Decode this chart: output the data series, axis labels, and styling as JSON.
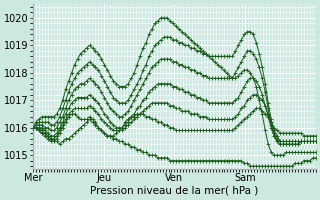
{
  "title": "",
  "xlabel": "Pression niveau de la mer( hPa )",
  "bg_color": "#cce8e0",
  "grid_color": "#ffffff",
  "line_color": "#1a5c1a",
  "marker": "+",
  "xlim": [
    0,
    96
  ],
  "ylim": [
    1014.5,
    1020.5
  ],
  "yticks": [
    1015,
    1016,
    1017,
    1018,
    1019,
    1020
  ],
  "xtick_labels": [
    "Mer",
    "Jeu",
    "Ven",
    "Sam"
  ],
  "xtick_positions": [
    0,
    24,
    48,
    72
  ],
  "vline_positions": [
    0,
    24,
    48,
    72
  ],
  "series": [
    [
      1016.0,
      1016.0,
      1015.9,
      1015.8,
      1015.8,
      1015.7,
      1015.6,
      1015.5,
      1015.5,
      1015.4,
      1015.5,
      1015.6,
      1015.6,
      1015.7,
      1015.8,
      1015.9,
      1016.0,
      1016.1,
      1016.2,
      1016.3,
      1016.2,
      1016.1,
      1016.0,
      1015.9,
      1015.8,
      1015.7,
      1015.7,
      1015.6,
      1015.6,
      1015.5,
      1015.5,
      1015.4,
      1015.4,
      1015.3,
      1015.3,
      1015.2,
      1015.2,
      1015.1,
      1015.1,
      1015.0,
      1015.0,
      1015.0,
      1014.9,
      1014.9,
      1014.9,
      1014.9,
      1014.8,
      1014.8,
      1014.8,
      1014.8,
      1014.8,
      1014.8,
      1014.8,
      1014.8,
      1014.8,
      1014.8,
      1014.8,
      1014.8,
      1014.8,
      1014.8,
      1014.8,
      1014.8,
      1014.8,
      1014.8,
      1014.8,
      1014.8,
      1014.8,
      1014.8,
      1014.8,
      1014.8,
      1014.8,
      1014.7,
      1014.7,
      1014.6,
      1014.6,
      1014.6,
      1014.6,
      1014.6,
      1014.6,
      1014.6,
      1014.6,
      1014.6,
      1014.6,
      1014.6,
      1014.6,
      1014.6,
      1014.6,
      1014.6,
      1014.7,
      1014.7,
      1014.7,
      1014.8,
      1014.8,
      1014.8,
      1014.9,
      1014.9
    ],
    [
      1016.0,
      1016.0,
      1015.9,
      1015.8,
      1015.7,
      1015.6,
      1015.5,
      1015.5,
      1015.6,
      1015.8,
      1016.0,
      1016.2,
      1016.4,
      1016.5,
      1016.5,
      1016.4,
      1016.3,
      1016.3,
      1016.3,
      1016.4,
      1016.3,
      1016.2,
      1016.0,
      1015.9,
      1015.8,
      1015.7,
      1015.7,
      1015.7,
      1015.8,
      1015.9,
      1016.0,
      1016.2,
      1016.3,
      1016.4,
      1016.4,
      1016.5,
      1016.5,
      1016.5,
      1016.4,
      1016.4,
      1016.3,
      1016.3,
      1016.2,
      1016.2,
      1016.1,
      1016.1,
      1016.0,
      1016.0,
      1015.9,
      1015.9,
      1015.9,
      1015.9,
      1015.9,
      1015.9,
      1015.9,
      1015.9,
      1015.9,
      1015.9,
      1015.9,
      1015.9,
      1015.9,
      1015.9,
      1015.9,
      1015.9,
      1015.9,
      1015.9,
      1015.9,
      1015.9,
      1016.0,
      1016.1,
      1016.2,
      1016.3,
      1016.4,
      1016.5,
      1016.6,
      1016.7,
      1016.7,
      1016.6,
      1016.5,
      1016.4,
      1016.2,
      1016.0,
      1015.9,
      1015.8,
      1015.8,
      1015.8,
      1015.8,
      1015.8,
      1015.8,
      1015.8,
      1015.8,
      1015.7,
      1015.7,
      1015.7,
      1015.7,
      1015.7
    ],
    [
      1016.0,
      1016.0,
      1016.0,
      1015.9,
      1015.8,
      1015.7,
      1015.6,
      1015.6,
      1015.7,
      1015.9,
      1016.1,
      1016.3,
      1016.5,
      1016.6,
      1016.7,
      1016.7,
      1016.7,
      1016.7,
      1016.7,
      1016.8,
      1016.7,
      1016.6,
      1016.5,
      1016.3,
      1016.2,
      1016.1,
      1016.0,
      1015.9,
      1015.9,
      1015.9,
      1015.9,
      1016.0,
      1016.1,
      1016.2,
      1016.3,
      1016.4,
      1016.5,
      1016.6,
      1016.7,
      1016.8,
      1016.9,
      1016.9,
      1016.9,
      1016.9,
      1016.9,
      1016.9,
      1016.8,
      1016.8,
      1016.7,
      1016.7,
      1016.6,
      1016.6,
      1016.6,
      1016.5,
      1016.5,
      1016.5,
      1016.4,
      1016.4,
      1016.4,
      1016.3,
      1016.3,
      1016.3,
      1016.3,
      1016.3,
      1016.3,
      1016.3,
      1016.3,
      1016.3,
      1016.4,
      1016.5,
      1016.7,
      1016.8,
      1017.0,
      1017.1,
      1017.2,
      1017.2,
      1017.1,
      1017.0,
      1016.8,
      1016.5,
      1016.2,
      1015.9,
      1015.7,
      1015.5,
      1015.5,
      1015.5,
      1015.5,
      1015.5,
      1015.5,
      1015.5,
      1015.5,
      1015.5,
      1015.5,
      1015.5,
      1015.5,
      1015.5
    ],
    [
      1016.0,
      1016.0,
      1016.0,
      1016.0,
      1015.9,
      1015.8,
      1015.7,
      1015.7,
      1015.8,
      1016.0,
      1016.2,
      1016.5,
      1016.7,
      1016.9,
      1017.0,
      1017.1,
      1017.1,
      1017.1,
      1017.1,
      1017.2,
      1017.1,
      1017.0,
      1016.9,
      1016.7,
      1016.5,
      1016.4,
      1016.2,
      1016.1,
      1016.0,
      1016.0,
      1016.0,
      1016.1,
      1016.2,
      1016.4,
      1016.5,
      1016.7,
      1016.8,
      1017.0,
      1017.1,
      1017.3,
      1017.4,
      1017.5,
      1017.6,
      1017.6,
      1017.6,
      1017.6,
      1017.6,
      1017.5,
      1017.5,
      1017.4,
      1017.4,
      1017.3,
      1017.3,
      1017.2,
      1017.2,
      1017.1,
      1017.1,
      1017.0,
      1017.0,
      1016.9,
      1016.9,
      1016.9,
      1016.9,
      1016.9,
      1016.9,
      1016.9,
      1016.9,
      1016.9,
      1017.0,
      1017.1,
      1017.3,
      1017.5,
      1017.7,
      1017.8,
      1017.8,
      1017.7,
      1017.5,
      1017.2,
      1016.8,
      1016.4,
      1016.0,
      1015.7,
      1015.5,
      1015.4,
      1015.4,
      1015.4,
      1015.4,
      1015.4,
      1015.4,
      1015.4,
      1015.5,
      1015.5,
      1015.5,
      1015.5,
      1015.5,
      1015.5
    ],
    [
      1016.0,
      1016.1,
      1016.1,
      1016.1,
      1016.0,
      1016.0,
      1015.9,
      1015.9,
      1016.0,
      1016.2,
      1016.4,
      1016.7,
      1017.0,
      1017.2,
      1017.4,
      1017.5,
      1017.6,
      1017.6,
      1017.7,
      1017.8,
      1017.7,
      1017.6,
      1017.5,
      1017.3,
      1017.1,
      1016.9,
      1016.7,
      1016.6,
      1016.5,
      1016.4,
      1016.4,
      1016.5,
      1016.6,
      1016.8,
      1017.0,
      1017.2,
      1017.4,
      1017.6,
      1017.8,
      1018.0,
      1018.2,
      1018.3,
      1018.4,
      1018.5,
      1018.5,
      1018.5,
      1018.5,
      1018.4,
      1018.4,
      1018.3,
      1018.3,
      1018.2,
      1018.2,
      1018.1,
      1018.1,
      1018.0,
      1018.0,
      1017.9,
      1017.9,
      1017.8,
      1017.8,
      1017.8,
      1017.8,
      1017.8,
      1017.8,
      1017.8,
      1017.8,
      1017.8,
      1018.0,
      1018.2,
      1018.4,
      1018.6,
      1018.8,
      1018.8,
      1018.7,
      1018.5,
      1018.2,
      1017.8,
      1017.3,
      1016.7,
      1016.1,
      1015.7,
      1015.5,
      1015.4,
      1015.4,
      1015.4,
      1015.4,
      1015.4,
      1015.4,
      1015.4,
      1015.5,
      1015.5,
      1015.5,
      1015.5,
      1015.5,
      1015.5
    ],
    [
      1016.0,
      1016.1,
      1016.2,
      1016.2,
      1016.2,
      1016.2,
      1016.1,
      1016.1,
      1016.2,
      1016.4,
      1016.7,
      1017.0,
      1017.3,
      1017.6,
      1017.8,
      1018.0,
      1018.1,
      1018.2,
      1018.3,
      1018.4,
      1018.3,
      1018.2,
      1018.1,
      1017.9,
      1017.7,
      1017.5,
      1017.3,
      1017.1,
      1017.0,
      1016.9,
      1016.9,
      1016.9,
      1017.0,
      1017.2,
      1017.4,
      1017.6,
      1017.8,
      1018.1,
      1018.3,
      1018.6,
      1018.8,
      1019.0,
      1019.1,
      1019.2,
      1019.3,
      1019.3,
      1019.3,
      1019.2,
      1019.2,
      1019.1,
      1019.1,
      1019.0,
      1019.0,
      1018.9,
      1018.9,
      1018.8,
      1018.8,
      1018.7,
      1018.7,
      1018.6,
      1018.6,
      1018.6,
      1018.6,
      1018.6,
      1018.6,
      1018.6,
      1018.6,
      1018.6,
      1018.8,
      1019.0,
      1019.2,
      1019.4,
      1019.5,
      1019.5,
      1019.4,
      1019.1,
      1018.7,
      1018.2,
      1017.6,
      1016.9,
      1016.3,
      1015.8,
      1015.6,
      1015.5,
      1015.5,
      1015.5,
      1015.5,
      1015.5,
      1015.5,
      1015.5,
      1015.5,
      1015.5,
      1015.5,
      1015.5,
      1015.5,
      1015.5
    ],
    [
      1016.0,
      1016.2,
      1016.3,
      1016.4,
      1016.4,
      1016.4,
      1016.4,
      1016.4,
      1016.5,
      1016.7,
      1017.0,
      1017.4,
      1017.7,
      1018.0,
      1018.3,
      1018.5,
      1018.7,
      1018.8,
      1018.9,
      1019.0,
      1018.9,
      1018.8,
      1018.7,
      1018.5,
      1018.3,
      1018.1,
      1017.9,
      1017.7,
      1017.6,
      1017.5,
      1017.5,
      1017.5,
      1017.6,
      1017.8,
      1018.0,
      1018.3,
      1018.6,
      1018.9,
      1019.1,
      1019.4,
      1019.6,
      1019.8,
      1019.9,
      1020.0,
      1020.0,
      1020.0,
      1019.9,
      1019.8,
      1019.7,
      1019.6,
      1019.5,
      1019.4,
      1019.3,
      1019.2,
      1019.1,
      1019.0,
      1018.9,
      1018.8,
      1018.7,
      1018.6,
      1018.5,
      1018.4,
      1018.3,
      1018.2,
      1018.1,
      1018.0,
      1017.9,
      1017.8,
      1017.8,
      1017.9,
      1018.0,
      1018.1,
      1018.1,
      1018.0,
      1017.8,
      1017.5,
      1017.0,
      1016.5,
      1015.9,
      1015.4,
      1015.1,
      1015.0,
      1015.0,
      1015.0,
      1015.0,
      1015.1,
      1015.1,
      1015.1,
      1015.1,
      1015.1,
      1015.1,
      1015.1,
      1015.1,
      1015.1,
      1015.1,
      1015.1
    ]
  ]
}
